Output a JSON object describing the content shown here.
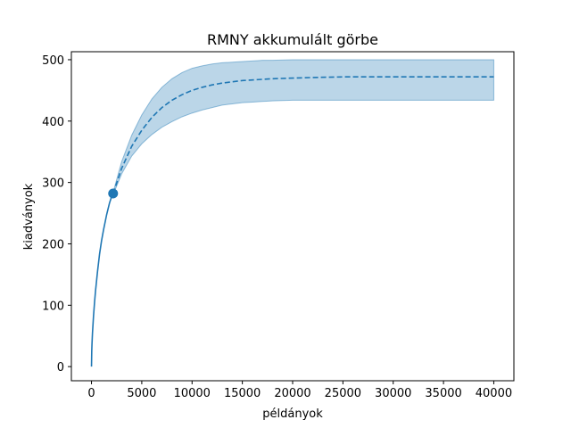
{
  "chart_data": {
    "type": "line",
    "title": "RMNY akkumulált görbe",
    "xlabel": "példányok",
    "ylabel": "kiadványok",
    "xlim": [
      -2000,
      42000
    ],
    "ylim": [
      -23,
      513
    ],
    "xticks": [
      0,
      5000,
      10000,
      15000,
      20000,
      25000,
      30000,
      35000,
      40000
    ],
    "xtick_labels": [
      "0",
      "5000",
      "10000",
      "15000",
      "20000",
      "25000",
      "30000",
      "35000",
      "40000"
    ],
    "yticks": [
      0,
      100,
      200,
      300,
      400,
      500
    ],
    "ytick_labels": [
      "0",
      "100",
      "200",
      "300",
      "400",
      "500"
    ],
    "grid": false,
    "colors": {
      "line": "#1f77b4",
      "band": "#1f77b4"
    },
    "series": [
      {
        "style": "solid",
        "x": [
          0,
          25,
          50,
          100,
          200,
          300,
          400,
          600,
          800,
          1000,
          1200,
          1500,
          1800,
          2000,
          2150
        ],
        "y": [
          0,
          25,
          37,
          55,
          82,
          104,
          123,
          155,
          183,
          205,
          223,
          247,
          267,
          277,
          282
        ]
      },
      {
        "style": "dashed",
        "x": [
          2150,
          3000,
          4000,
          5000,
          6000,
          7000,
          8000,
          9000,
          10000,
          11000,
          12000,
          13000,
          14000,
          15000,
          16000,
          17000,
          18000,
          20000,
          22000,
          25000,
          28000,
          32000,
          36000,
          40000
        ],
        "y": [
          282,
          323,
          359,
          385,
          406,
          422,
          434,
          443,
          450,
          455,
          459,
          462,
          464,
          466,
          467,
          468,
          469,
          470,
          471,
          472,
          472,
          472,
          472,
          472
        ]
      }
    ],
    "confidence_band": {
      "x": [
        2150,
        3000,
        4000,
        5000,
        6000,
        7000,
        8000,
        9000,
        10000,
        11000,
        12000,
        13000,
        14000,
        15000,
        16000,
        17000,
        18000,
        20000,
        22000,
        25000,
        28000,
        32000,
        36000,
        40000
      ],
      "lower": [
        280,
        314,
        343,
        363,
        378,
        390,
        399,
        407,
        413,
        418,
        422,
        426,
        428,
        430,
        431,
        432,
        433,
        434,
        434,
        434,
        434,
        434,
        434,
        434
      ],
      "upper": [
        284,
        334,
        377,
        410,
        436,
        455,
        469,
        479,
        486,
        490,
        493,
        495,
        496,
        497,
        498,
        499,
        499,
        500,
        500,
        500,
        500,
        500,
        500,
        500
      ]
    },
    "markers": [
      {
        "x": 2150,
        "y": 282
      }
    ]
  }
}
